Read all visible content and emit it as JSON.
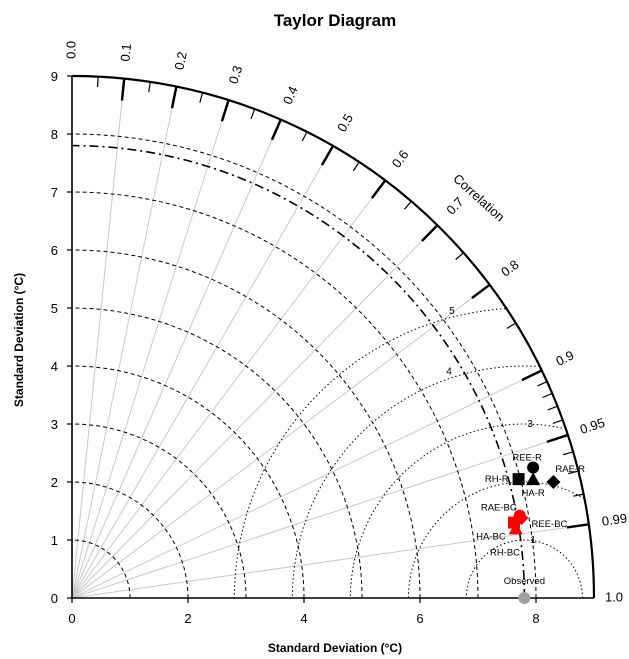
{
  "chart_data": {
    "type": "taylor",
    "title": "Taylor Diagram",
    "xlabel": "Standard Deviation (°C)",
    "ylabel": "Standard Deviation (°C)",
    "std_range": [
      0,
      9
    ],
    "std_ticks": [
      "0",
      "1",
      "2",
      "3",
      "4",
      "5",
      "6",
      "7",
      "8",
      "9"
    ],
    "x_ticks": [
      "0",
      "2",
      "4",
      "6",
      "8"
    ],
    "correlation_title": "Correlation",
    "correlation_ticks": [
      {
        "value": 0.0,
        "label": "0.0"
      },
      {
        "value": 0.1,
        "label": "0.1"
      },
      {
        "value": 0.2,
        "label": "0.2"
      },
      {
        "value": 0.3,
        "label": "0.3"
      },
      {
        "value": 0.4,
        "label": "0.4"
      },
      {
        "value": 0.5,
        "label": "0.5"
      },
      {
        "value": 0.6,
        "label": "0.6"
      },
      {
        "value": 0.7,
        "label": "0.7"
      },
      {
        "value": 0.8,
        "label": "0.8"
      },
      {
        "value": 0.9,
        "label": "0.9"
      },
      {
        "value": 0.95,
        "label": "0.95"
      },
      {
        "value": 0.99,
        "label": "0.99"
      },
      {
        "value": 1.0,
        "label": "1.0"
      }
    ],
    "rmsd_labels": [
      "1",
      "3",
      "4",
      "5"
    ],
    "reference": {
      "name": "Observed",
      "std": 7.8,
      "correlation": 1.0,
      "color": "#a0a0a0"
    },
    "reference_std_arc": 7.8,
    "points": [
      {
        "name": "REE-R",
        "x": 7.95,
        "y": 2.25,
        "marker": "circle",
        "color": "#000000"
      },
      {
        "name": "RAE-R",
        "x": 8.3,
        "y": 2.0,
        "marker": "diamond",
        "color": "#000000"
      },
      {
        "name": "RH-R",
        "x": 7.7,
        "y": 2.05,
        "marker": "square",
        "color": "#000000"
      },
      {
        "name": "HA-R",
        "x": 7.95,
        "y": 2.05,
        "marker": "triangle",
        "color": "#000000"
      },
      {
        "name": "RAE-BC",
        "x": 7.72,
        "y": 1.42,
        "marker": "circle",
        "color": "#ff0000"
      },
      {
        "name": "REE-BC",
        "x": 7.75,
        "y": 1.38,
        "marker": "diamond",
        "color": "#ff0000"
      },
      {
        "name": "HA-BC",
        "x": 7.65,
        "y": 1.2,
        "marker": "triangle",
        "color": "#ff0000"
      },
      {
        "name": "RH-BC",
        "x": 7.62,
        "y": 1.3,
        "marker": "square",
        "color": "#ff0000"
      }
    ]
  }
}
